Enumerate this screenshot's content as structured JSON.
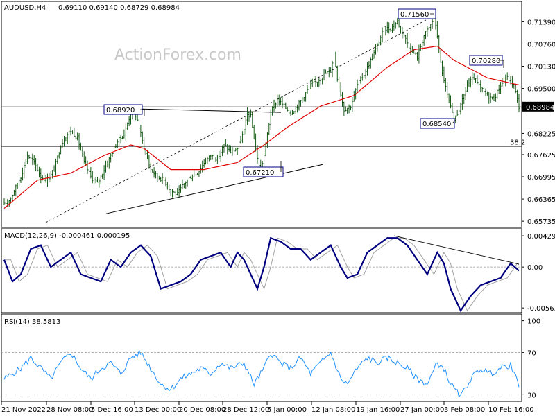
{
  "header": {
    "symbol": "AUDUSD,H4",
    "ohlc": "0.69110 0.69140 0.68729 0.68984"
  },
  "watermark": "ActionForex.com",
  "chart_data": [
    {
      "type": "candlestick",
      "panel": "price",
      "ylim": [
        0.656,
        0.7185
      ],
      "y_ticks": [
        "0.71390",
        "0.70760",
        "0.70130",
        "0.69500",
        "0.68225",
        "0.67625",
        "0.66995",
        "0.66365",
        "0.65735"
      ],
      "y_tick_values": [
        0.7139,
        0.7076,
        0.7013,
        0.695,
        0.68225,
        0.67625,
        0.66995,
        0.66365,
        0.65735
      ],
      "current_price": {
        "label": "0.68984",
        "value": 0.68984
      },
      "fib_level": {
        "label": "38.2",
        "value": 0.6785
      },
      "annotations": [
        {
          "label": "0.68920",
          "value": 0.6892
        },
        {
          "label": "0.67210",
          "value": 0.6721
        },
        {
          "label": "0.71560",
          "value": 0.7156
        },
        {
          "label": "0.70280",
          "value": 0.7028
        },
        {
          "label": "0.68540",
          "value": 0.6854
        }
      ],
      "close_path": [
        [
          0,
          0.662
        ],
        [
          4,
          0.664
        ],
        [
          10,
          0.67
        ],
        [
          14,
          0.676
        ],
        [
          18,
          0.674
        ],
        [
          22,
          0.67
        ],
        [
          26,
          0.669
        ],
        [
          30,
          0.672
        ],
        [
          34,
          0.679
        ],
        [
          38,
          0.682
        ],
        [
          40,
          0.683
        ],
        [
          44,
          0.681
        ],
        [
          48,
          0.674
        ],
        [
          52,
          0.67
        ],
        [
          56,
          0.668
        ],
        [
          60,
          0.672
        ],
        [
          64,
          0.676
        ],
        [
          68,
          0.68
        ],
        [
          72,
          0.682
        ],
        [
          76,
          0.688
        ],
        [
          78,
          0.689
        ],
        [
          80,
          0.686
        ],
        [
          84,
          0.678
        ],
        [
          88,
          0.672
        ],
        [
          92,
          0.67
        ],
        [
          96,
          0.669
        ],
        [
          100,
          0.666
        ],
        [
          104,
          0.665
        ],
        [
          108,
          0.668
        ],
        [
          112,
          0.67
        ],
        [
          116,
          0.671
        ],
        [
          120,
          0.674
        ],
        [
          124,
          0.676
        ],
        [
          128,
          0.675
        ],
        [
          132,
          0.679
        ],
        [
          136,
          0.677
        ],
        [
          140,
          0.678
        ],
        [
          144,
          0.683
        ],
        [
          146,
          0.688
        ],
        [
          148,
          0.687
        ],
        [
          150,
          0.681
        ],
        [
          152,
          0.675
        ],
        [
          154,
          0.672
        ],
        [
          156,
          0.676
        ],
        [
          158,
          0.682
        ],
        [
          160,
          0.688
        ],
        [
          164,
          0.692
        ],
        [
          168,
          0.69
        ],
        [
          172,
          0.688
        ],
        [
          176,
          0.69
        ],
        [
          180,
          0.693
        ],
        [
          184,
          0.696
        ],
        [
          188,
          0.697
        ],
        [
          192,
          0.699
        ],
        [
          196,
          0.7
        ],
        [
          198,
          0.705
        ],
        [
          200,
          0.698
        ],
        [
          204,
          0.689
        ],
        [
          208,
          0.69
        ],
        [
          212,
          0.696
        ],
        [
          216,
          0.699
        ],
        [
          220,
          0.703
        ],
        [
          224,
          0.707
        ],
        [
          228,
          0.712
        ],
        [
          232,
          0.712
        ],
        [
          236,
          0.714
        ],
        [
          240,
          0.71
        ],
        [
          244,
          0.706
        ],
        [
          248,
          0.704
        ],
        [
          252,
          0.71
        ],
        [
          256,
          0.713
        ],
        [
          258,
          0.715
        ],
        [
          260,
          0.71
        ],
        [
          262,
          0.702
        ],
        [
          266,
          0.693
        ],
        [
          270,
          0.686
        ],
        [
          274,
          0.69
        ],
        [
          278,
          0.696
        ],
        [
          282,
          0.698
        ],
        [
          286,
          0.695
        ],
        [
          290,
          0.693
        ],
        [
          294,
          0.692
        ],
        [
          298,
          0.696
        ],
        [
          302,
          0.698
        ],
        [
          306,
          0.696
        ],
        [
          309,
          0.6898
        ]
      ],
      "ma_path": [
        [
          0,
          0.661
        ],
        [
          20,
          0.669
        ],
        [
          40,
          0.671
        ],
        [
          60,
          0.676
        ],
        [
          76,
          0.679
        ],
        [
          84,
          0.678
        ],
        [
          100,
          0.672
        ],
        [
          120,
          0.672
        ],
        [
          140,
          0.674
        ],
        [
          156,
          0.679
        ],
        [
          170,
          0.684
        ],
        [
          190,
          0.69
        ],
        [
          210,
          0.693
        ],
        [
          230,
          0.701
        ],
        [
          246,
          0.706
        ],
        [
          260,
          0.707
        ],
        [
          270,
          0.703
        ],
        [
          290,
          0.698
        ],
        [
          309,
          0.696
        ]
      ]
    },
    {
      "type": "line",
      "panel": "macd",
      "title": "MACD(12,26,9) -0.000461 0.000195",
      "ylim": [
        -0.006,
        0.0045
      ],
      "y_ticks": [
        "0.004299",
        "0.00",
        "-0.005636"
      ],
      "y_tick_values": [
        0.004299,
        0.0,
        -0.005636
      ],
      "macd_path": [
        [
          0,
          0.001
        ],
        [
          5,
          -0.002
        ],
        [
          10,
          -0.001
        ],
        [
          16,
          0.0025
        ],
        [
          22,
          0.003
        ],
        [
          28,
          0.0
        ],
        [
          34,
          0.001
        ],
        [
          40,
          0.002
        ],
        [
          46,
          -0.001
        ],
        [
          52,
          -0.0015
        ],
        [
          58,
          -0.002
        ],
        [
          64,
          0.001
        ],
        [
          70,
          0.0
        ],
        [
          76,
          0.002
        ],
        [
          82,
          0.003
        ],
        [
          88,
          0.0015
        ],
        [
          94,
          -0.003
        ],
        [
          100,
          -0.0025
        ],
        [
          106,
          -0.002
        ],
        [
          112,
          -0.001
        ],
        [
          118,
          0.001
        ],
        [
          124,
          0.0015
        ],
        [
          130,
          0.002
        ],
        [
          136,
          0.0
        ],
        [
          140,
          0.002
        ],
        [
          144,
          0.001
        ],
        [
          148,
          -0.001
        ],
        [
          152,
          -0.003
        ],
        [
          156,
          0.0
        ],
        [
          160,
          0.004
        ],
        [
          166,
          0.0035
        ],
        [
          172,
          0.0025
        ],
        [
          178,
          0.0025
        ],
        [
          184,
          0.001
        ],
        [
          190,
          0.002
        ],
        [
          196,
          0.003
        ],
        [
          202,
          0.0
        ],
        [
          206,
          -0.0015
        ],
        [
          212,
          -0.001
        ],
        [
          218,
          0.002
        ],
        [
          224,
          0.003
        ],
        [
          230,
          0.004
        ],
        [
          236,
          0.004
        ],
        [
          242,
          0.003
        ],
        [
          248,
          0.001
        ],
        [
          254,
          -0.001
        ],
        [
          260,
          0.002
        ],
        [
          264,
          0.0005
        ],
        [
          268,
          -0.003
        ],
        [
          274,
          -0.006
        ],
        [
          280,
          -0.004
        ],
        [
          286,
          -0.0025
        ],
        [
          292,
          -0.002
        ],
        [
          298,
          -0.0015
        ],
        [
          304,
          0.0005
        ],
        [
          309,
          -0.0005
        ]
      ],
      "signal_offset": 4
    },
    {
      "type": "line",
      "panel": "rsi",
      "title": "RSI(14) 38.5813",
      "ylim": [
        25,
        105
      ],
      "y_ticks": [
        "100",
        "70",
        "30"
      ],
      "y_tick_values": [
        100,
        70,
        30
      ],
      "rsi_path": [
        [
          0,
          45
        ],
        [
          10,
          55
        ],
        [
          16,
          65
        ],
        [
          22,
          55
        ],
        [
          28,
          45
        ],
        [
          34,
          60
        ],
        [
          40,
          70
        ],
        [
          46,
          55
        ],
        [
          52,
          45
        ],
        [
          58,
          55
        ],
        [
          64,
          60
        ],
        [
          70,
          50
        ],
        [
          76,
          65
        ],
        [
          82,
          70
        ],
        [
          88,
          55
        ],
        [
          94,
          40
        ],
        [
          100,
          35
        ],
        [
          106,
          45
        ],
        [
          112,
          50
        ],
        [
          118,
          55
        ],
        [
          124,
          50
        ],
        [
          130,
          60
        ],
        [
          136,
          55
        ],
        [
          144,
          60
        ],
        [
          150,
          40
        ],
        [
          156,
          55
        ],
        [
          160,
          70
        ],
        [
          166,
          60
        ],
        [
          172,
          55
        ],
        [
          178,
          65
        ],
        [
          184,
          50
        ],
        [
          190,
          60
        ],
        [
          196,
          70
        ],
        [
          202,
          45
        ],
        [
          206,
          40
        ],
        [
          212,
          55
        ],
        [
          218,
          65
        ],
        [
          224,
          60
        ],
        [
          230,
          65
        ],
        [
          236,
          60
        ],
        [
          242,
          55
        ],
        [
          248,
          45
        ],
        [
          254,
          40
        ],
        [
          260,
          60
        ],
        [
          264,
          55
        ],
        [
          268,
          40
        ],
        [
          274,
          28
        ],
        [
          280,
          45
        ],
        [
          286,
          55
        ],
        [
          292,
          50
        ],
        [
          298,
          55
        ],
        [
          304,
          58
        ],
        [
          309,
          38.58
        ]
      ]
    }
  ],
  "x_axis": {
    "labels": [
      "21 Nov 2022",
      "28 Nov 08:00",
      "5 Dec 16:00",
      "13 Dec 00:00",
      "20 Dec 08:00",
      "28 Dec 12:00",
      "5 Jan 00:00",
      "12 Jan 08:00",
      "19 Jan 16:00",
      "27 Jan 00:00",
      "3 Feb 08:00",
      "10 Feb 16:00"
    ]
  },
  "colors": {
    "candle": "#004a00",
    "ma": "#e00000",
    "macd": "#000080",
    "signal": "#a0a0a0",
    "rsi": "#1e90ff",
    "label_box": "#000080"
  }
}
